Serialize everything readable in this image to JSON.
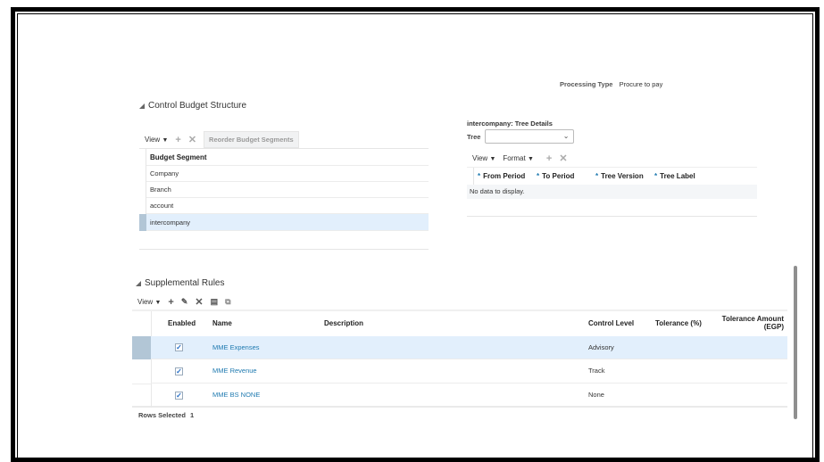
{
  "processing": {
    "label": "Processing Type",
    "value": "Procure to pay"
  },
  "control_budget": {
    "title": "Control Budget Structure",
    "view_label": "View",
    "reorder_label": "Reorder Budget Segments",
    "column": "Budget Segment",
    "rows": [
      "Company",
      "Branch",
      "account",
      "intercompany"
    ],
    "selected_index": 3
  },
  "tree_details": {
    "title": "intercompany: Tree Details",
    "tree_label": "Tree",
    "tree_value": "",
    "view_label": "View",
    "format_label": "Format",
    "columns": [
      "From Period",
      "To Period",
      "Tree Version",
      "Tree Label"
    ],
    "empty": "No data to display."
  },
  "supplemental": {
    "title": "Supplemental Rules",
    "view_label": "View",
    "columns": {
      "enabled": "Enabled",
      "name": "Name",
      "description": "Description",
      "control_level": "Control Level",
      "tolerance_pct": "Tolerance (%)",
      "tolerance_amt_1": "Tolerance Amount",
      "tolerance_amt_2": "(EGP)"
    },
    "rows": [
      {
        "enabled": true,
        "name": "MME Expenses",
        "description": "",
        "control_level": "Advisory"
      },
      {
        "enabled": true,
        "name": "MME Revenue",
        "description": "",
        "control_level": "Track"
      },
      {
        "enabled": true,
        "name": "MME BS NONE",
        "description": "",
        "control_level": "None"
      }
    ],
    "rows_selected_label": "Rows Selected",
    "rows_selected_count": "1"
  },
  "colors": {
    "link": "#1f7ab0",
    "selected_row": "#e2effc"
  }
}
